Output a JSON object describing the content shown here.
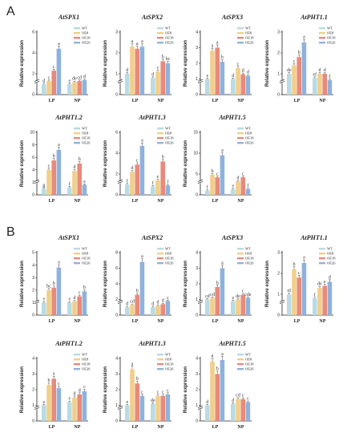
{
  "panels": [
    {
      "letter": "A"
    },
    {
      "letter": "B"
    }
  ],
  "legend": [
    "WT",
    "OE8",
    "OE18",
    "OE26"
  ],
  "colors": [
    "#b9dbe3",
    "#f1cf8a",
    "#e88a7a",
    "#8fb2dc"
  ],
  "categories": [
    "LP",
    "NP"
  ],
  "y_axis_label": "Relative expression",
  "chart_data": [
    {
      "type": "bar",
      "title": "AtSPX1",
      "group": "A",
      "categories": [
        "LP",
        "NP"
      ],
      "series": [
        {
          "name": "WT",
          "values": [
            1.0,
            1.0
          ]
        },
        {
          "name": "OE8",
          "values": [
            1.3,
            1.2
          ]
        },
        {
          "name": "OE18",
          "values": [
            2.3,
            1.3
          ]
        },
        {
          "name": "OE26",
          "values": [
            4.4,
            1.4
          ]
        }
      ],
      "ylim": [
        0,
        6
      ],
      "ticks": [
        0,
        2,
        4,
        6
      ],
      "letters": [
        [
          "d",
          "c",
          "c",
          "a"
        ],
        [
          "e",
          "de",
          "cd",
          "d"
        ]
      ]
    },
    {
      "type": "bar",
      "title": "AtSPX2",
      "group": "A",
      "categories": [
        "LP",
        "NP"
      ],
      "series": [
        {
          "name": "WT",
          "values": [
            1.0,
            0.8
          ]
        },
        {
          "name": "OE8",
          "values": [
            2.3,
            1.1
          ]
        },
        {
          "name": "OE18",
          "values": [
            2.2,
            1.6
          ]
        },
        {
          "name": "OE26",
          "values": [
            2.3,
            1.5
          ]
        }
      ],
      "ylim": [
        0,
        3
      ],
      "ticks": [
        0,
        1,
        2,
        3
      ],
      "letters": [
        [
          "d",
          "a",
          "a",
          "a"
        ],
        [
          "d",
          "c",
          "b",
          "bc"
        ]
      ]
    },
    {
      "type": "bar",
      "title": "AtSPX3",
      "group": "A",
      "categories": [
        "LP",
        "NP"
      ],
      "series": [
        {
          "name": "WT",
          "values": [
            1.0,
            1.0
          ]
        },
        {
          "name": "OE8",
          "values": [
            2.8,
            1.7
          ]
        },
        {
          "name": "OE18",
          "values": [
            3.0,
            1.3
          ]
        },
        {
          "name": "OE26",
          "values": [
            2.1,
            1.2
          ]
        }
      ],
      "ylim": [
        0,
        4
      ],
      "ticks": [
        0,
        1,
        2,
        3,
        4
      ],
      "letters": [
        [
          "e",
          "a",
          "a",
          "b"
        ],
        [
          "d",
          "c",
          "d",
          "d"
        ]
      ]
    },
    {
      "type": "bar",
      "title": "AtPHT1.1",
      "group": "A",
      "categories": [
        "LP",
        "NP"
      ],
      "series": [
        {
          "name": "WT",
          "values": [
            1.0,
            0.8
          ]
        },
        {
          "name": "OE8",
          "values": [
            1.4,
            1.0
          ]
        },
        {
          "name": "OE18",
          "values": [
            1.8,
            1.0
          ]
        },
        {
          "name": "OE26",
          "values": [
            2.5,
            0.7
          ]
        }
      ],
      "ylim": [
        0,
        3
      ],
      "ticks": [
        0,
        1,
        2,
        3
      ],
      "letters": [
        [
          "de",
          "c",
          "b",
          "a"
        ],
        [
          "ef",
          "d",
          "d",
          "f"
        ]
      ]
    },
    {
      "type": "bar",
      "title": "AtPHT1.2",
      "group": "A",
      "categories": [
        "LP",
        "NP"
      ],
      "series": [
        {
          "name": "WT",
          "values": [
            1.0,
            1.2
          ]
        },
        {
          "name": "OE8",
          "values": [
            4.0,
            3.8
          ]
        },
        {
          "name": "OE18",
          "values": [
            5.5,
            5.0
          ]
        },
        {
          "name": "OE26",
          "values": [
            7.2,
            1.6
          ]
        }
      ],
      "ylim": [
        0,
        10
      ],
      "ticks": [
        0,
        2,
        4,
        6,
        8,
        10
      ],
      "letters": [
        [
          "g",
          "c",
          "b",
          "a"
        ],
        [
          "f",
          "d",
          "b",
          "e"
        ]
      ]
    },
    {
      "type": "bar",
      "title": "AtPHT1.3",
      "group": "A",
      "categories": [
        "LP",
        "NP"
      ],
      "series": [
        {
          "name": "WT",
          "values": [
            1.0,
            0.8
          ]
        },
        {
          "name": "OE8",
          "values": [
            2.2,
            1.4
          ]
        },
        {
          "name": "OE18",
          "values": [
            2.9,
            3.2
          ]
        },
        {
          "name": "OE26",
          "values": [
            4.7,
            0.9
          ]
        }
      ],
      "ylim": [
        0,
        6
      ],
      "ticks": [
        0,
        2,
        4,
        6
      ],
      "letters": [
        [
          "f",
          "d",
          "c",
          "a"
        ],
        [
          "f",
          "e",
          "b",
          "f"
        ]
      ]
    },
    {
      "type": "bar",
      "title": "AtPHT1.5",
      "group": "A",
      "categories": [
        "LP",
        "NP"
      ],
      "series": [
        {
          "name": "WT",
          "values": [
            1.0,
            1.3
          ]
        },
        {
          "name": "OE8",
          "values": [
            4.8,
            3.2
          ]
        },
        {
          "name": "OE18",
          "values": [
            4.2,
            4.2
          ]
        },
        {
          "name": "OE26",
          "values": [
            9.5,
            1.4
          ]
        }
      ],
      "ylim": [
        0,
        15
      ],
      "ticks": [
        0,
        5,
        10,
        15
      ],
      "letters": [
        [
          "f",
          "b",
          "c",
          "a"
        ],
        [
          "e",
          "d",
          "c",
          "f"
        ]
      ]
    },
    {
      "type": "bar",
      "title": "AtSPX1",
      "group": "B",
      "categories": [
        "LP",
        "NP"
      ],
      "series": [
        {
          "name": "WT",
          "values": [
            1.0,
            1.0
          ]
        },
        {
          "name": "OE8",
          "values": [
            2.0,
            1.1
          ]
        },
        {
          "name": "OE18",
          "values": [
            2.2,
            1.5
          ]
        },
        {
          "name": "OE26",
          "values": [
            3.8,
            1.9
          ]
        }
      ],
      "ylim": [
        0,
        5
      ],
      "ticks": [
        0,
        1,
        2,
        3,
        4,
        5
      ],
      "letters": [
        [
          "e",
          "bc",
          "b",
          "a"
        ],
        [
          "e",
          "d",
          "c",
          "b"
        ]
      ]
    },
    {
      "type": "bar",
      "title": "AtSPX2",
      "group": "B",
      "categories": [
        "LP",
        "NP"
      ],
      "series": [
        {
          "name": "WT",
          "values": [
            1.0,
            1.0
          ]
        },
        {
          "name": "OE8",
          "values": [
            1.3,
            1.2
          ]
        },
        {
          "name": "OE18",
          "values": [
            2.6,
            1.4
          ]
        },
        {
          "name": "OE26",
          "values": [
            6.8,
            1.8
          ]
        }
      ],
      "ylim": [
        0,
        8
      ],
      "ticks": [
        0,
        2,
        4,
        6,
        8
      ],
      "letters": [
        [
          "d",
          "cd",
          "b",
          "a"
        ],
        [
          "d",
          "d",
          "d",
          "c"
        ]
      ]
    },
    {
      "type": "bar",
      "title": "AtSPX3",
      "group": "B",
      "categories": [
        "LP",
        "NP"
      ],
      "series": [
        {
          "name": "WT",
          "values": [
            1.0,
            0.9
          ]
        },
        {
          "name": "OE8",
          "values": [
            1.1,
            1.0
          ]
        },
        {
          "name": "OE18",
          "values": [
            1.8,
            1.3
          ]
        },
        {
          "name": "OE26",
          "values": [
            3.0,
            1.1
          ]
        }
      ],
      "ylim": [
        0,
        4
      ],
      "ticks": [
        0,
        1,
        2,
        3,
        4
      ],
      "letters": [
        [
          "cd",
          "cd",
          "b",
          "a"
        ],
        [
          "e",
          "de",
          "c",
          "cde"
        ]
      ]
    },
    {
      "type": "bar",
      "title": "AtPHT1.1",
      "group": "B",
      "categories": [
        "LP",
        "NP"
      ],
      "series": [
        {
          "name": "WT",
          "values": [
            1.0,
            0.8
          ]
        },
        {
          "name": "OE8",
          "values": [
            2.2,
            1.3
          ]
        },
        {
          "name": "OE18",
          "values": [
            1.8,
            1.4
          ]
        },
        {
          "name": "OE26",
          "values": [
            2.5,
            1.6
          ]
        }
      ],
      "ylim": [
        0,
        3
      ],
      "ticks": [
        0,
        1,
        2,
        3
      ],
      "letters": [
        [
          "ef",
          "b",
          "c",
          "a"
        ],
        [
          "f",
          "de",
          "e",
          "d"
        ]
      ]
    },
    {
      "type": "bar",
      "title": "AtPHT1.2",
      "group": "B",
      "categories": [
        "LP",
        "NP"
      ],
      "series": [
        {
          "name": "WT",
          "values": [
            1.0,
            1.2
          ]
        },
        {
          "name": "OE8",
          "values": [
            2.3,
            1.5
          ]
        },
        {
          "name": "OE18",
          "values": [
            2.7,
            1.7
          ]
        },
        {
          "name": "OE26",
          "values": [
            2.1,
            1.9
          ]
        }
      ],
      "ylim": [
        0,
        4
      ],
      "ticks": [
        0,
        1,
        2,
        3,
        4
      ],
      "letters": [
        [
          "e",
          "b",
          "a",
          "c"
        ],
        [
          "e",
          "d",
          "d",
          "c"
        ]
      ]
    },
    {
      "type": "bar",
      "title": "AtPHT1.3",
      "group": "B",
      "categories": [
        "LP",
        "NP"
      ],
      "series": [
        {
          "name": "WT",
          "values": [
            1.0,
            1.1
          ]
        },
        {
          "name": "OE8",
          "values": [
            3.3,
            1.6
          ]
        },
        {
          "name": "OE18",
          "values": [
            2.4,
            1.6
          ]
        },
        {
          "name": "OE26",
          "values": [
            1.6,
            1.7
          ]
        }
      ],
      "ylim": [
        0,
        4
      ],
      "ticks": [
        0,
        1,
        2,
        3,
        4
      ],
      "letters": [
        [
          "e",
          "a",
          "b",
          "c"
        ],
        [
          "de",
          "c",
          "c",
          "c"
        ]
      ]
    },
    {
      "type": "bar",
      "title": "AtPHT1.5",
      "group": "B",
      "categories": [
        "LP",
        "NP"
      ],
      "series": [
        {
          "name": "WT",
          "values": [
            1.0,
            1.1
          ]
        },
        {
          "name": "OE8",
          "values": [
            3.8,
            1.4
          ]
        },
        {
          "name": "OE18",
          "values": [
            3.0,
            1.4
          ]
        },
        {
          "name": "OE26",
          "values": [
            3.9,
            1.2
          ]
        }
      ],
      "ylim": [
        0,
        4
      ],
      "ticks": [
        0,
        1,
        2,
        3,
        4
      ],
      "letters": [
        [
          "d",
          "a",
          "b",
          "a"
        ],
        [
          "d",
          "cd",
          "c",
          "c"
        ]
      ]
    }
  ]
}
